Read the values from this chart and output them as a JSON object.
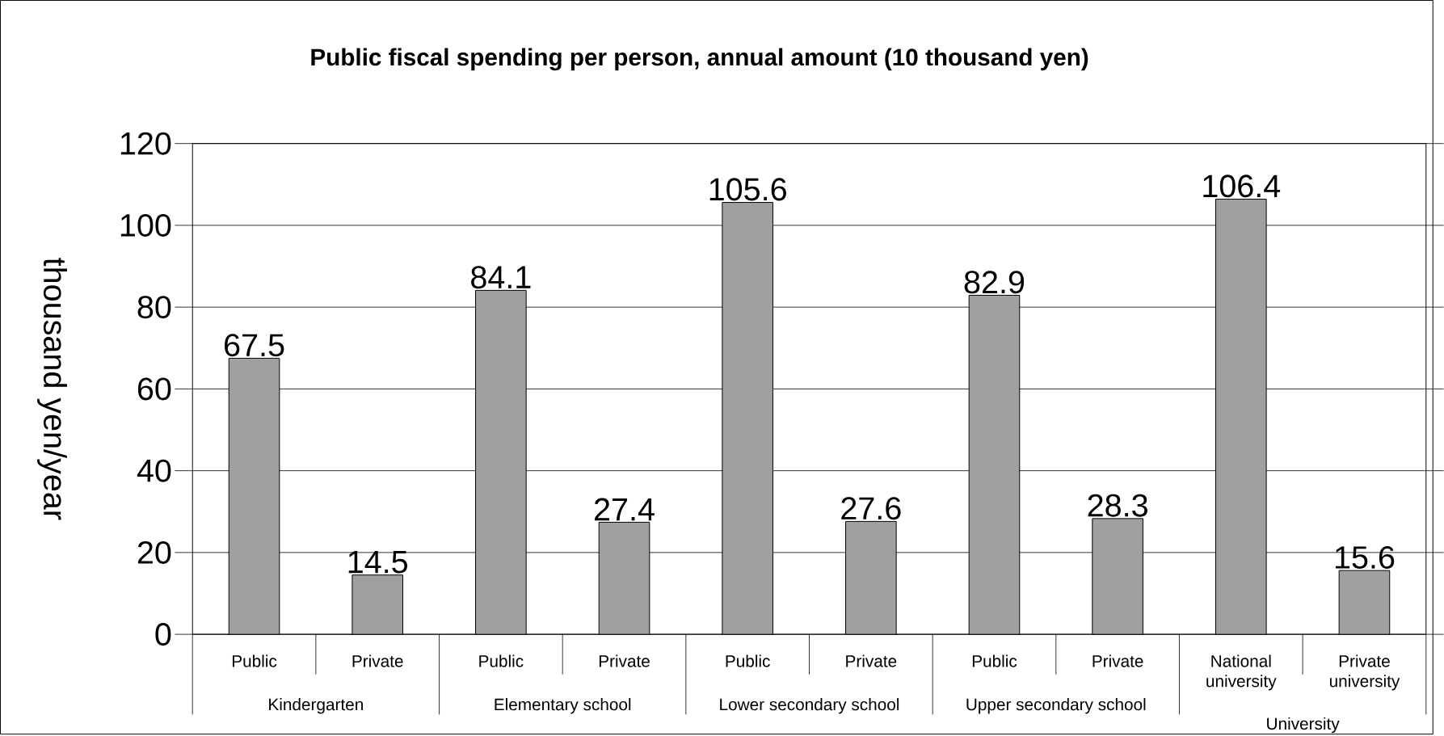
{
  "chart_data": {
    "type": "bar",
    "title": "Public fiscal spending per person, annual amount (10 thousand yen)",
    "ylabel": "thousand yen/year",
    "categories": [
      "Public",
      "Private",
      "Public",
      "Private",
      "Public",
      "Private",
      "Public",
      "Private",
      "National university",
      "Private university"
    ],
    "values": [
      67.5,
      14.5,
      84.1,
      27.4,
      105.6,
      27.6,
      82.9,
      28.3,
      106.4,
      15.6
    ],
    "color": "#a0a0a0",
    "annotations": [
      "Kindergarten",
      "Elementary school",
      "Lower secondary school",
      "Upper secondary school",
      "University"
    ],
    "ylim": [
      0,
      120
    ],
    "yticks": [
      0,
      20,
      40,
      60,
      80,
      100,
      120
    ],
    "grid": "y",
    "data_labels": true
  }
}
